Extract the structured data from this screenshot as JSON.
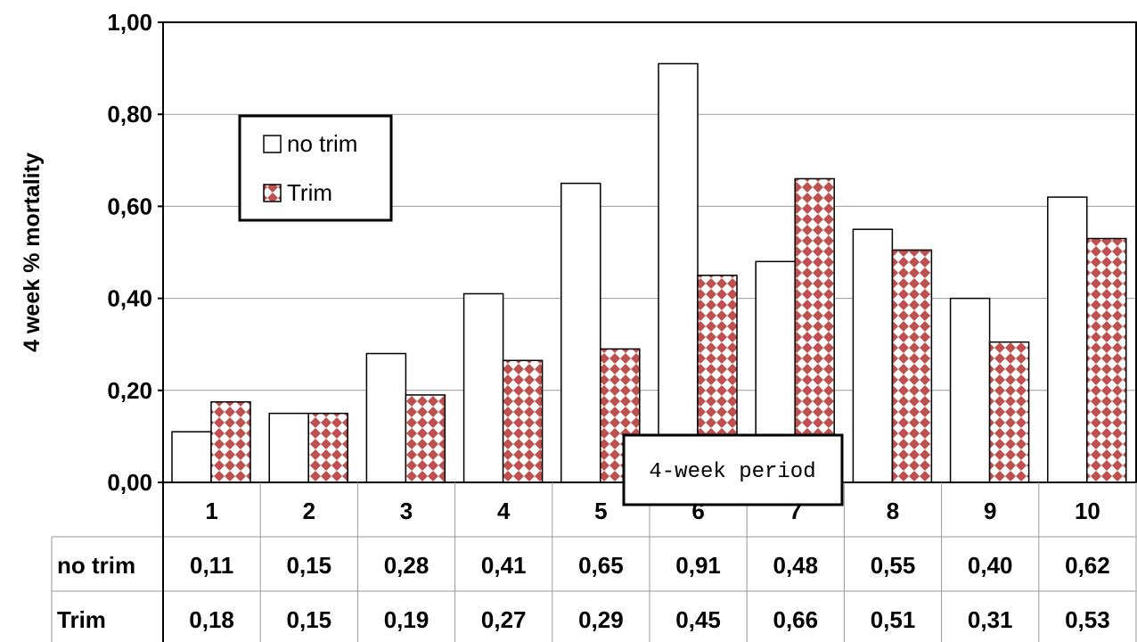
{
  "chart_data": {
    "type": "bar",
    "categories": [
      "1",
      "2",
      "3",
      "4",
      "5",
      "6",
      "7",
      "8",
      "9",
      "10"
    ],
    "series": [
      {
        "name": "no trim",
        "values": [
          0.11,
          0.15,
          0.28,
          0.41,
          0.65,
          0.91,
          0.48,
          0.55,
          0.4,
          0.62
        ],
        "labels": [
          "0,11",
          "0,15",
          "0,28",
          "0,41",
          "0,65",
          "0,91",
          "0,48",
          "0,55",
          "0,40",
          "0,62"
        ],
        "color": "#ffffff"
      },
      {
        "name": "Trim",
        "values": [
          0.175,
          0.15,
          0.19,
          0.265,
          0.29,
          0.45,
          0.66,
          0.505,
          0.305,
          0.53
        ],
        "labels": [
          "0,18",
          "0,15",
          "0,19",
          "0,27",
          "0,29",
          "0,45",
          "0,66",
          "0,51",
          "0,31",
          "0,53"
        ],
        "color": "#c0504d"
      }
    ],
    "ylabel": "4 week % mortality",
    "xlabel": "",
    "ylim": [
      0,
      1.0
    ],
    "yticks": [
      "0,00",
      "0,20",
      "0,40",
      "0,60",
      "0,80",
      "1,00"
    ],
    "grid": true,
    "legend": "top-left",
    "annotation": "4-week period",
    "data_table": true
  }
}
